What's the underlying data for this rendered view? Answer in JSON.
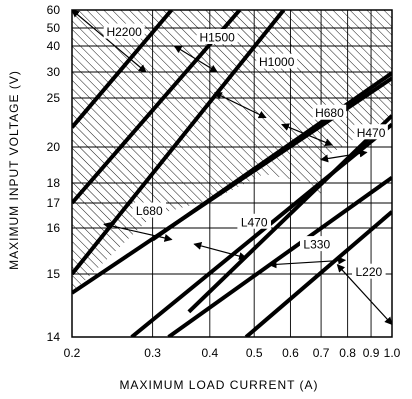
{
  "chart_data": {
    "type": "line",
    "title": "",
    "xlabel": "MAXIMUM LOAD CURRENT (A)",
    "ylabel": "MAXIMUM INPUT VOLTAGE (V)",
    "x_scale": "log",
    "y_scale": "custom",
    "xlim": [
      0.2,
      1.0
    ],
    "ylim": [
      14,
      60
    ],
    "x_ticks": [
      {
        "value": 0.2,
        "label": "0.2"
      },
      {
        "value": 0.3,
        "label": "0.3"
      },
      {
        "value": 0.4,
        "label": "0.4"
      },
      {
        "value": 0.5,
        "label": "0.5"
      },
      {
        "value": 0.6,
        "label": "0.6"
      },
      {
        "value": 0.7,
        "label": "0.7"
      },
      {
        "value": 0.8,
        "label": "0.8"
      },
      {
        "value": 0.9,
        "label": "0.9"
      },
      {
        "value": 1.0,
        "label": "1.0"
      }
    ],
    "y_ticks": [
      {
        "value": 14,
        "label": "14"
      },
      {
        "value": 15,
        "label": "15"
      },
      {
        "value": 16,
        "label": "16"
      },
      {
        "value": 17,
        "label": "17"
      },
      {
        "value": 18,
        "label": "18"
      },
      {
        "value": 20,
        "label": "20"
      },
      {
        "value": 25,
        "label": "25"
      },
      {
        "value": 30,
        "label": "30"
      },
      {
        "value": 40,
        "label": "40"
      },
      {
        "value": 50,
        "label": "50"
      },
      {
        "value": 60,
        "label": "60"
      }
    ],
    "grid": true,
    "series": [
      {
        "name": "H2200",
        "points": [
          [
            0.2,
            22.0
          ],
          [
            0.33,
            60.0
          ]
        ],
        "label_at": [
          0.26,
          48.0
        ],
        "arrow_to": [
          [
            0.2,
            60.0
          ],
          [
            0.29,
            30.0
          ]
        ]
      },
      {
        "name": "H1500",
        "points": [
          [
            0.2,
            17.0
          ],
          [
            0.465,
            60.0
          ]
        ],
        "label_at": [
          0.415,
          45.0
        ],
        "arrow_to": [
          [
            0.335,
            40.0
          ],
          [
            0.415,
            30.0
          ]
        ]
      },
      {
        "name": "H1000",
        "points": [
          [
            0.2,
            15.0
          ],
          [
            0.58,
            60.0
          ]
        ],
        "label_at": [
          0.56,
          34.0
        ],
        "arrow_to": [
          [
            0.41,
            26.0
          ],
          [
            0.53,
            23.0
          ]
        ]
      },
      {
        "name": "H680",
        "points": [
          [
            0.3,
            15.75
          ],
          [
            1.0,
            29.8
          ]
        ],
        "label_at": [
          0.73,
          23.5
        ],
        "arrow_to": [
          [
            0.575,
            22.3
          ],
          [
            0.74,
            20.2
          ]
        ]
      },
      {
        "name": "H470",
        "points": [
          [
            0.36,
            14.4
          ],
          [
            1.0,
            23.2
          ]
        ],
        "label_at": [
          0.9,
          21.5
        ],
        "arrow_to": [
          [
            0.7,
            19.3
          ],
          [
            0.88,
            19.7
          ]
        ]
      },
      {
        "name": "L680",
        "points": [
          [
            0.2,
            14.7
          ],
          [
            1.0,
            28.8
          ]
        ],
        "label_at": [
          0.295,
          16.7
        ],
        "arrow_to": [
          [
            0.235,
            16.15
          ],
          [
            0.33,
            15.75
          ]
        ]
      },
      {
        "name": "L470",
        "points": [
          [
            0.27,
            14.0
          ],
          [
            1.0,
            22.3
          ]
        ],
        "label_at": [
          0.5,
          16.25
        ],
        "arrow_to": [
          [
            0.37,
            15.65
          ],
          [
            0.48,
            15.35
          ]
        ]
      },
      {
        "name": "L330",
        "points": [
          [
            0.325,
            14.0
          ],
          [
            1.0,
            18.3
          ]
        ],
        "label_at": [
          0.685,
          15.65
        ],
        "arrow_to": [
          [
            0.54,
            15.2
          ],
          [
            0.79,
            15.3
          ]
        ]
      },
      {
        "name": "L220",
        "points": [
          [
            0.48,
            14.0
          ],
          [
            1.0,
            16.65
          ]
        ],
        "label_at": [
          0.89,
          15.05
        ],
        "arrow_to": [
          [
            0.76,
            15.2
          ],
          [
            1.0,
            14.2
          ]
        ]
      }
    ],
    "hatched_region": {
      "boundary": [
        [
          0.2,
          60.0
        ],
        [
          1.0,
          60.0
        ],
        [
          1.0,
          23.2
        ],
        [
          0.7,
          19.3
        ],
        [
          0.7,
          17.25
        ],
        [
          0.665,
          18.0
        ],
        [
          0.525,
          18.5
        ],
        [
          0.41,
          17.2
        ],
        [
          0.3,
          16.5
        ],
        [
          0.2,
          14.7
        ]
      ]
    },
    "colors": {
      "line": "#000000",
      "grid": "#000000",
      "hatch": "#000000",
      "background": "#ffffff"
    }
  }
}
